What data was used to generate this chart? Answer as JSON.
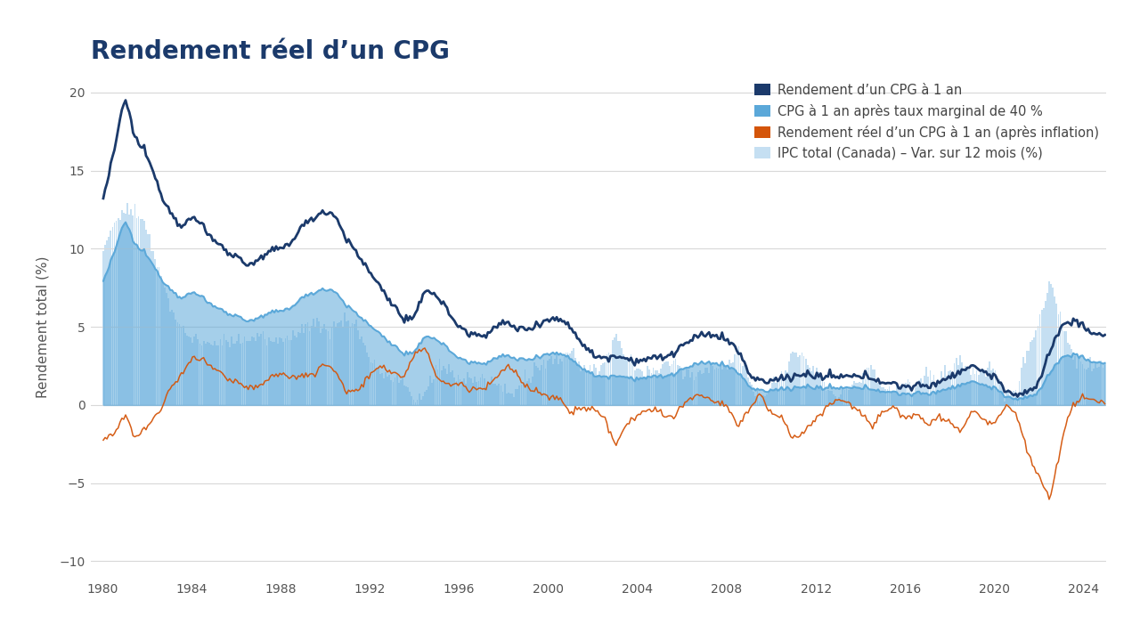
{
  "title": "Rendement réel d’un CPG",
  "ylabel": "Rendement total (%)",
  "legend": [
    "Rendement d’un CPG à 1 an",
    "CPG à 1 an après taux marginal de 40 %",
    "Rendement réel d’un CPG à 1 an (après inflation)",
    "IPC total (Canada) – Var. sur 12 mois (%)"
  ],
  "colors": {
    "gic": "#1b3a6b",
    "gic_after_tax": "#5ba8d9",
    "real_return": "#d4550a",
    "cpi": "#c5dff2"
  },
  "xlim": [
    1979.5,
    2025.0
  ],
  "ylim": [
    -11,
    21
  ],
  "yticks": [
    -10,
    -5,
    0,
    5,
    10,
    15,
    20
  ],
  "xticks": [
    1980,
    1984,
    1988,
    1992,
    1996,
    2000,
    2004,
    2008,
    2012,
    2016,
    2020,
    2024
  ],
  "background_color": "#ffffff",
  "title_color": "#1b3a6b",
  "title_fontsize": 20,
  "grid_color": "#d8d8d8"
}
